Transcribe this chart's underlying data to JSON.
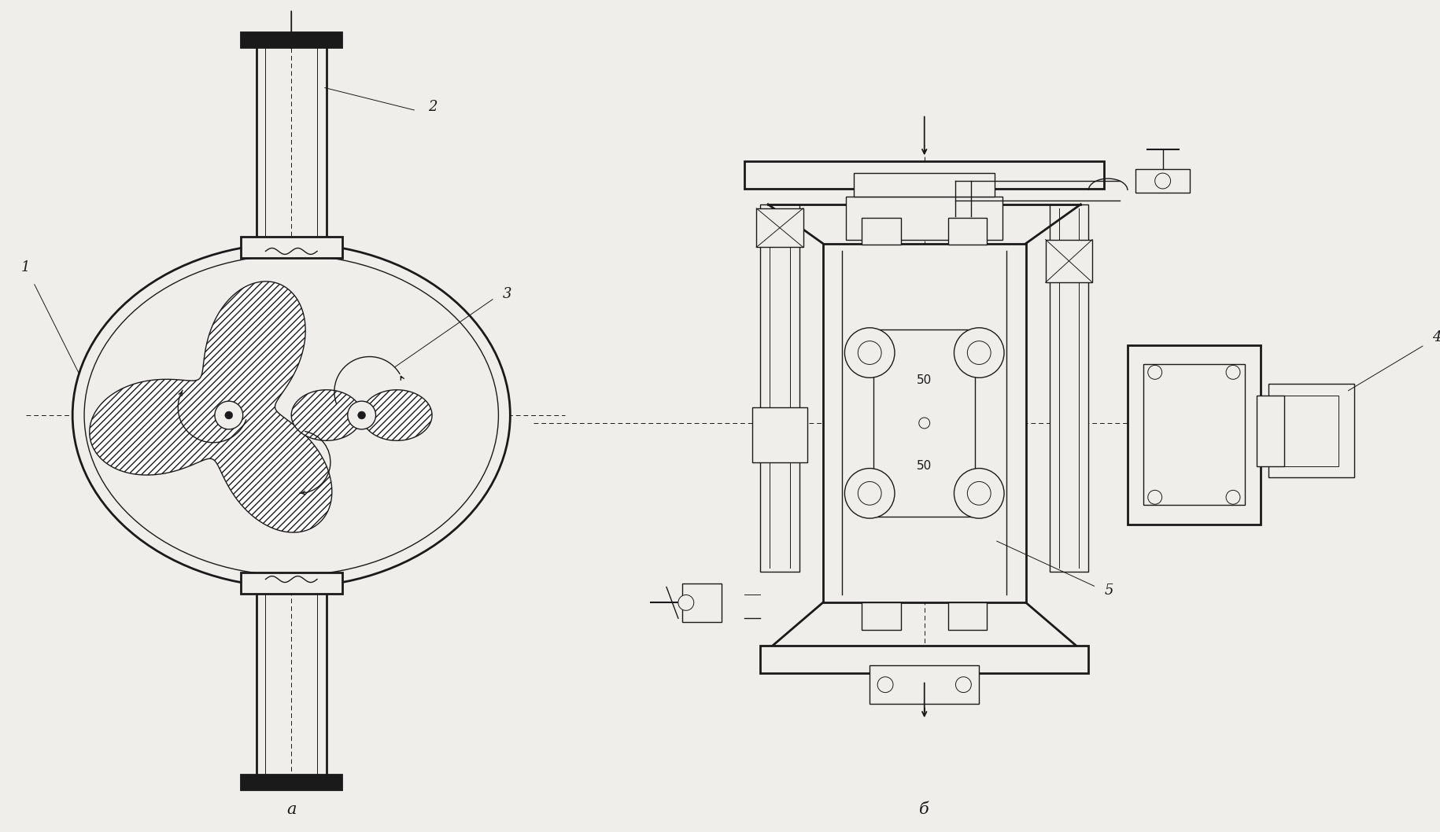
{
  "bg_color": "#f0eeea",
  "line_color": "#1a1a1a",
  "label_a": "а",
  "label_b": "б",
  "dim_50_1": "50",
  "dim_50_2": "50"
}
